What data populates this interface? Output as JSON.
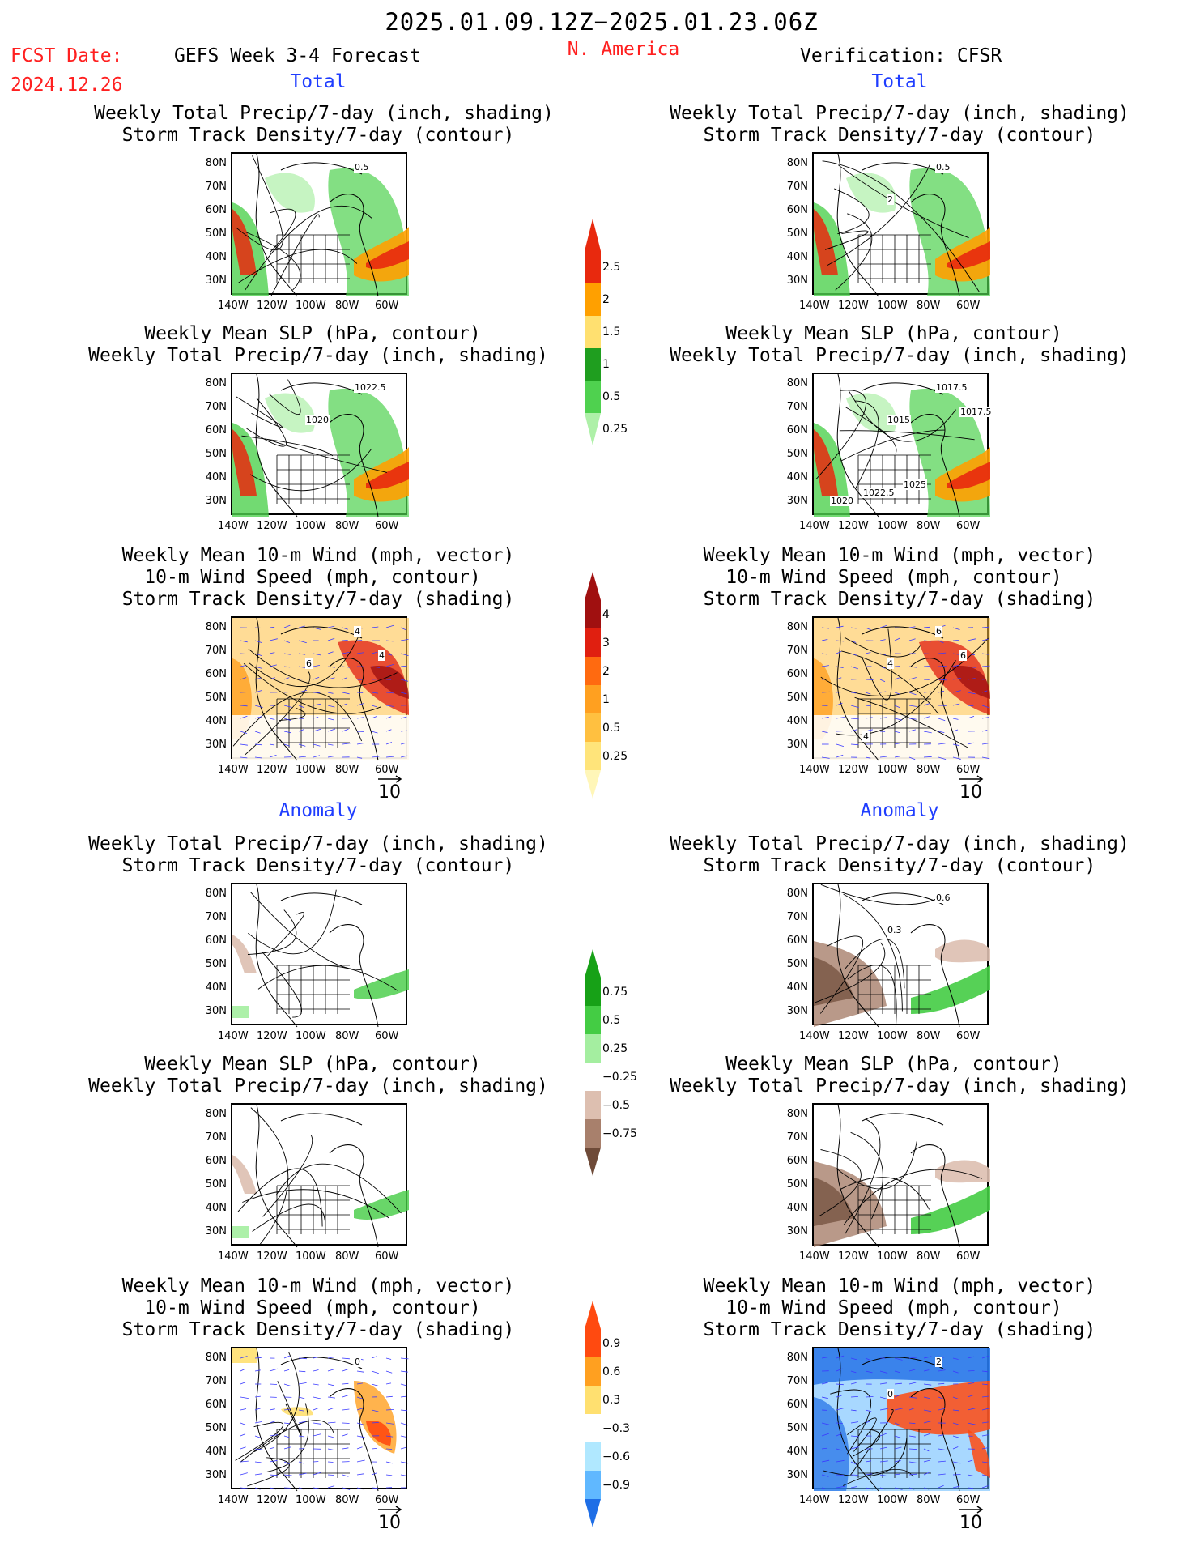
{
  "header": {
    "period": "2025.01.09.12Z−2025.01.23.06Z",
    "fcst_label": "FCST Date:",
    "fcst_date": "2024.12.26",
    "product": "GEFS Week 3-4 Forecast",
    "region": "N. America",
    "verification": "Verification: CFSR"
  },
  "sections": {
    "total": "Total",
    "anomaly": "Anomaly"
  },
  "panel_titles": {
    "precip_storm": [
      "Weekly Total Precip/7-day (inch, shading)",
      "Storm Track Density/7-day (contour)"
    ],
    "slp_precip": [
      "Weekly Mean SLP (hPa, contour)",
      "Weekly Total Precip/7-day (inch, shading)"
    ],
    "wind": [
      "Weekly Mean 10-m Wind (mph, vector)",
      "10-m Wind Speed (mph, contour)",
      "Storm Track Density/7-day (shading)"
    ]
  },
  "axes": {
    "lat_ticks": [
      "80N",
      "70N",
      "60N",
      "50N",
      "40N",
      "30N"
    ],
    "lon_ticks": [
      "140W",
      "120W",
      "100W",
      "80W",
      "60W"
    ]
  },
  "vector_ref": "10",
  "map_labels": {
    "fc_total_storm": [
      "0.5"
    ],
    "vf_total_storm": [
      "0.5",
      "2"
    ],
    "fc_total_slp": [
      "1022.5",
      "1020"
    ],
    "vf_total_slp": [
      "1017.5",
      "1015",
      "1017.5",
      "1022.5",
      "1025",
      "1020"
    ],
    "fc_total_wind": [
      "4",
      "6",
      "4"
    ],
    "vf_total_wind": [
      "6",
      "4",
      "6",
      "4"
    ],
    "vf_anom_storm": [
      "0.6",
      "0.3"
    ],
    "fc_anom_wind": [
      "0"
    ],
    "vf_anom_wind": [
      "2",
      "0"
    ]
  },
  "colorbars": {
    "precip_total": {
      "labels": [
        "2.5",
        "2",
        "1.5",
        "1",
        "0.5",
        "0.25"
      ],
      "colors": [
        "#e8290e",
        "#ffa000",
        "#ffe070",
        "#1f9e1f",
        "#4fd14f",
        "#aef0a8"
      ]
    },
    "storm_total": {
      "labels": [
        "4",
        "3",
        "2",
        "1",
        "0.5",
        "0.25"
      ],
      "colors": [
        "#a01010",
        "#e01f10",
        "#ff6a10",
        "#ffa020",
        "#ffc040",
        "#ffe47a",
        "#fff6b8"
      ]
    },
    "precip_anom": {
      "labels": [
        "0.75",
        "0.5",
        "0.25",
        "−0.25",
        "−0.5",
        "−0.75"
      ],
      "colors": [
        "#17a117",
        "#44cc44",
        "#a4eea0",
        "#ffffff",
        "#ddbfb0",
        "#a8806c",
        "#6e4a38"
      ]
    },
    "storm_anom": {
      "labels": [
        "0.9",
        "0.6",
        "0.3",
        "−0.3",
        "−0.6",
        "−0.9"
      ],
      "colors": [
        "#ff4a10",
        "#ffa020",
        "#ffe070",
        "#ffffff",
        "#b0e8ff",
        "#60b8ff",
        "#1e6ee6"
      ]
    }
  }
}
